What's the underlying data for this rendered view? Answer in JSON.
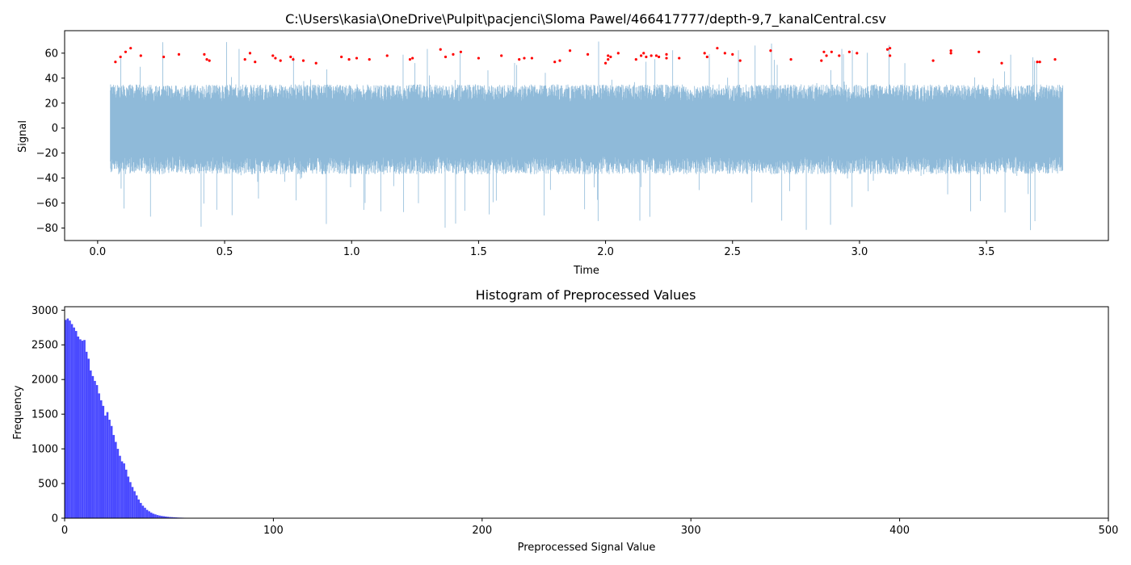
{
  "chart_data": [
    {
      "type": "line",
      "title": "C:\\Users\\kasia\\OneDrive\\Pulpit\\pacjenci\\Sloma Pawel/466417777/depth-9,7_kanalCentral.csv",
      "xlabel": "Time",
      "ylabel": "Signal",
      "xlim": [
        -0.13,
        3.98
      ],
      "ylim": [
        -90,
        78
      ],
      "xticks": [
        0.0,
        0.5,
        1.0,
        1.5,
        2.0,
        2.5,
        3.0,
        3.5
      ],
      "xtick_labels": [
        "0.0",
        "0.5",
        "1.0",
        "1.5",
        "2.0",
        "2.5",
        "3.0",
        "3.5"
      ],
      "yticks": [
        -80,
        -60,
        -40,
        -20,
        0,
        20,
        40,
        60
      ],
      "ytick_labels": [
        "−80",
        "−60",
        "−40",
        "−20",
        "0",
        "20",
        "40",
        "60"
      ],
      "grid": false,
      "colors": {
        "signal": "#8fbad9",
        "peaks": "#ff0000"
      },
      "signal_envelope": {
        "x_start": 0.05,
        "x_end": 3.8,
        "typical_upper": 35,
        "typical_lower": -37,
        "upper_spike_max": 70,
        "lower_spike_min": -82
      },
      "series": [
        {
          "x": [
            0.07,
            0.09,
            0.11,
            0.13,
            0.17,
            0.26,
            0.32,
            0.42,
            0.43,
            0.44,
            0.58,
            0.6,
            0.62,
            0.69,
            0.7,
            0.72,
            0.76,
            0.77,
            0.81,
            0.86,
            0.96,
            0.99,
            1.02,
            1.07,
            1.14,
            1.23,
            1.24,
            1.35,
            1.37,
            1.4,
            1.43,
            1.5,
            1.59,
            1.66,
            1.68,
            1.71,
            1.8,
            1.82,
            1.86,
            1.93,
            2.0,
            2.01,
            2.01,
            2.02,
            2.05,
            2.12,
            2.14,
            2.15,
            2.16,
            2.18,
            2.2,
            2.21,
            2.24,
            2.24,
            2.29,
            2.39,
            2.4,
            2.44,
            2.47,
            2.5,
            2.53,
            2.65,
            2.73,
            2.85,
            2.86,
            2.87,
            2.89,
            2.92,
            2.96,
            2.99,
            3.11,
            3.12,
            3.12,
            3.29,
            3.36,
            3.36,
            3.47,
            3.56,
            3.7,
            3.71,
            3.77
          ],
          "y": [
            53,
            57,
            61,
            64,
            58,
            57,
            59,
            59,
            55,
            54,
            55,
            60,
            53,
            58,
            56,
            54,
            57,
            55,
            54,
            52,
            57,
            55,
            56,
            55,
            58,
            55,
            56,
            63,
            57,
            59,
            61,
            56,
            58,
            55,
            56,
            56,
            53,
            54,
            62,
            59,
            52,
            58,
            55,
            57,
            60,
            55,
            58,
            60,
            57,
            58,
            58,
            57,
            56,
            59,
            56,
            60,
            57,
            64,
            60,
            59,
            54,
            62,
            55,
            54,
            61,
            58,
            61,
            58,
            61,
            60,
            63,
            58,
            64,
            54,
            62,
            60,
            61,
            52,
            53,
            53,
            55
          ]
        }
      ]
    },
    {
      "type": "bar",
      "title": "Histogram of Preprocessed Values",
      "xlabel": "Preprocessed Signal Value",
      "ylabel": "Frequency",
      "xlim": [
        0,
        500
      ],
      "ylim": [
        0,
        3050
      ],
      "xticks": [
        0,
        100,
        200,
        300,
        400,
        500
      ],
      "xtick_labels": [
        "0",
        "100",
        "200",
        "300",
        "400",
        "500"
      ],
      "yticks": [
        0,
        500,
        1000,
        1500,
        2000,
        2500,
        3000
      ],
      "ytick_labels": [
        "0",
        "500",
        "1000",
        "1500",
        "2000",
        "2500",
        "3000"
      ],
      "grid": false,
      "colors": {
        "bars": "#4a4aff"
      },
      "bin_width": 1,
      "x_start": 0,
      "values": [
        2860,
        2880,
        2850,
        2800,
        2750,
        2700,
        2620,
        2580,
        2560,
        2570,
        2400,
        2300,
        2130,
        2050,
        1980,
        1920,
        1800,
        1700,
        1620,
        1480,
        1530,
        1420,
        1330,
        1200,
        1100,
        1000,
        900,
        820,
        790,
        700,
        600,
        520,
        450,
        390,
        330,
        270,
        220,
        180,
        150,
        120,
        100,
        80,
        65,
        55,
        45,
        38,
        32,
        28,
        24,
        20,
        17,
        15,
        13,
        11,
        9,
        8,
        7,
        6,
        5,
        5,
        4,
        4,
        3,
        3,
        2,
        2,
        2,
        1,
        1,
        1
      ]
    }
  ]
}
